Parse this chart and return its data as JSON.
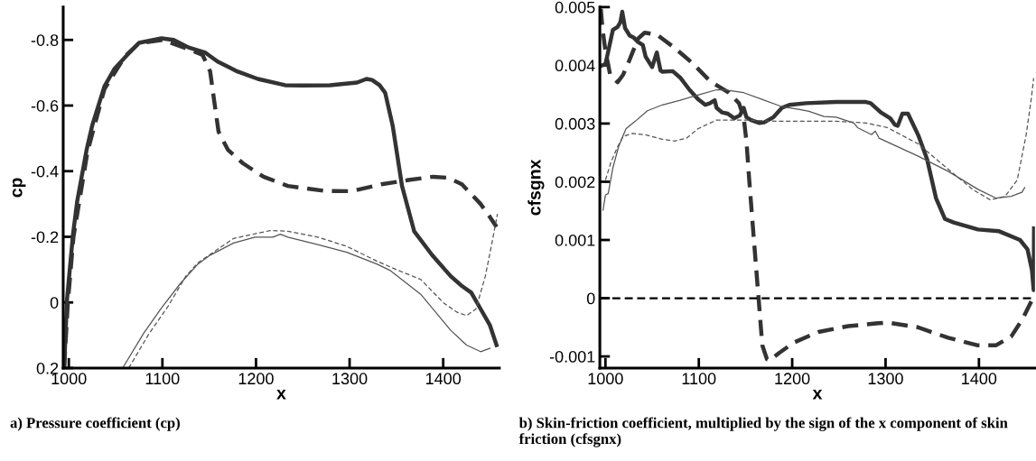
{
  "chart_data": [
    {
      "type": "line",
      "xlabel": "x",
      "ylabel": "cp",
      "xlim": [
        994,
        1460
      ],
      "ylim": [
        0.2,
        -0.9
      ],
      "xticks": [
        1000,
        1100,
        1200,
        1300,
        1400
      ],
      "yticks": [
        -0.8,
        -0.6,
        -0.4,
        -0.2,
        0,
        0.2
      ],
      "annotations": [
        "a) Pressure coefficient (cp)"
      ],
      "series": [
        {
          "color": "#333333",
          "line_style": "solid",
          "x": [
            995,
            998,
            1004.5,
            1009,
            1019,
            1025,
            1038,
            1049,
            1061,
            1075,
            1099,
            1112,
            1128,
            1146,
            1159,
            1180,
            1202,
            1231,
            1250,
            1279,
            1308,
            1318,
            1324,
            1332,
            1338,
            1346,
            1356,
            1369,
            1388,
            1408,
            1420,
            1430,
            1440,
            1450,
            1457
          ],
          "values": [
            0.2,
            -0.006,
            -0.208,
            -0.309,
            -0.465,
            -0.539,
            -0.658,
            -0.713,
            -0.75,
            -0.791,
            -0.805,
            -0.8,
            -0.777,
            -0.761,
            -0.734,
            -0.704,
            -0.681,
            -0.662,
            -0.661,
            -0.662,
            -0.67,
            -0.681,
            -0.678,
            -0.662,
            -0.639,
            -0.539,
            -0.355,
            -0.217,
            -0.145,
            -0.08,
            -0.05,
            -0.03,
            0.02,
            0.07,
            0.13
          ]
        },
        {
          "color": "#333333",
          "line_style": "dashed",
          "x": [
            995,
            999,
            1005,
            1020,
            1038,
            1060,
            1075,
            1100,
            1125,
            1143,
            1151,
            1155,
            1160,
            1170,
            1186,
            1208,
            1234,
            1273,
            1302,
            1334,
            1363,
            1389,
            1405,
            1420,
            1440,
            1450,
            1457
          ],
          "values": [
            0.2,
            0.0,
            -0.2,
            -0.46,
            -0.65,
            -0.75,
            -0.79,
            -0.8,
            -0.775,
            -0.754,
            -0.704,
            -0.621,
            -0.52,
            -0.465,
            -0.424,
            -0.383,
            -0.355,
            -0.34,
            -0.339,
            -0.36,
            -0.373,
            -0.383,
            -0.38,
            -0.36,
            -0.3,
            -0.26,
            -0.23
          ]
        },
        {
          "color": "#555555",
          "line_style": "solid",
          "x": [
            1057.5,
            1080,
            1099,
            1119,
            1138,
            1151,
            1176,
            1199,
            1218,
            1226,
            1234,
            1266,
            1297,
            1329,
            1343,
            1376,
            1408,
            1425,
            1440,
            1450
          ],
          "values": [
            0.2,
            0.094,
            0.017,
            -0.057,
            -0.117,
            -0.144,
            -0.181,
            -0.199,
            -0.199,
            -0.208,
            -0.199,
            -0.176,
            -0.153,
            -0.117,
            -0.098,
            -0.025,
            0.085,
            0.13,
            0.15,
            0.14
          ]
        },
        {
          "color": "#555555",
          "line_style": "dashed",
          "x": [
            1064,
            1086,
            1106,
            1125,
            1138,
            1176,
            1215,
            1234,
            1266,
            1297,
            1329,
            1350,
            1376,
            1401,
            1415,
            1425,
            1435,
            1445,
            1452,
            1458
          ],
          "values": [
            0.2,
            0.094,
            0.012,
            -0.08,
            -0.121,
            -0.195,
            -0.219,
            -0.217,
            -0.199,
            -0.171,
            -0.126,
            -0.1,
            -0.07,
            0.003,
            0.03,
            0.04,
            0.02,
            -0.08,
            -0.18,
            -0.27
          ]
        }
      ]
    },
    {
      "type": "line",
      "xlabel": "x",
      "ylabel": "cfsgnx",
      "xlim": [
        994,
        1460
      ],
      "ylim": [
        -0.0012,
        0.005
      ],
      "xticks": [
        1000,
        1100,
        1200,
        1300,
        1400
      ],
      "yticks": [
        -0.001,
        0,
        0.001,
        0.002,
        0.003,
        0.004,
        0.005
      ],
      "annotations": [
        "b) Skin-friction coefficient, multiplied by the sign of the x component of skin friction (cfsgnx)"
      ],
      "ref_lines": [
        {
          "axis": "y",
          "value": 0,
          "color": "#000000",
          "line_style": "dashed"
        }
      ],
      "series": [
        {
          "color": "#333333",
          "line_style": "solid",
          "x": [
            995,
            1000,
            1008,
            1013,
            1016,
            1018,
            1021,
            1026,
            1030,
            1035,
            1040,
            1043,
            1050,
            1055,
            1059,
            1061,
            1072,
            1080,
            1090,
            1099,
            1107,
            1112,
            1117,
            1119,
            1125,
            1131,
            1138,
            1144,
            1148,
            1151,
            1156,
            1165,
            1170,
            1180,
            1189,
            1197,
            1215,
            1247,
            1279,
            1284,
            1295,
            1305,
            1310,
            1313,
            1318,
            1324,
            1335,
            1344.4,
            1354,
            1363.7,
            1373,
            1399,
            1421.6,
            1444,
            1452,
            1456.8,
            1458.6,
            1459
          ],
          "values": [
            0.00399,
            0.00402,
            0.00461,
            0.00466,
            0.00474,
            0.00492,
            0.00464,
            0.00451,
            0.00448,
            0.0044,
            0.00435,
            0.00415,
            0.00397,
            0.00422,
            0.00391,
            0.00389,
            0.0039,
            0.00379,
            0.00358,
            0.00342,
            0.00332,
            0.00335,
            0.0034,
            0.00327,
            0.00319,
            0.00317,
            0.00309,
            0.00314,
            0.00327,
            0.00311,
            0.00306,
            0.00301,
            0.00302,
            0.00311,
            0.00327,
            0.00332,
            0.00335,
            0.00337,
            0.00337,
            0.00335,
            0.00319,
            0.00309,
            0.00298,
            0.00296,
            0.00317,
            0.00317,
            0.0028,
            0.00239,
            0.00172,
            0.00136,
            0.0013,
            0.00118,
            0.00115,
            0.001,
            0.00084,
            0.00048,
            0.00014,
            0.0012
          ]
        },
        {
          "color": "#333333",
          "line_style": "dashed",
          "x": [
            995,
            997,
            1000,
            1005,
            1013,
            1019,
            1026,
            1035,
            1042,
            1055,
            1074,
            1093,
            1112,
            1132,
            1143,
            1148,
            1151,
            1154,
            1159,
            1164,
            1168,
            1173,
            1176,
            1186,
            1202,
            1228,
            1260,
            1292,
            1302.5,
            1334.7,
            1367,
            1399,
            1418,
            1434.5,
            1447,
            1455,
            1458.6
          ],
          "values": [
            0.00497,
            0.00461,
            0.00425,
            0.00384,
            0.00371,
            0.00384,
            0.0041,
            0.00446,
            0.00456,
            0.00453,
            0.0043,
            0.00404,
            0.00373,
            0.00353,
            0.00335,
            0.00311,
            0.0027,
            0.00203,
            0.001,
            0.0,
            -0.00081,
            -0.00105,
            -0.00107,
            -0.00094,
            -0.00076,
            -0.00058,
            -0.00048,
            -0.00043,
            -0.00042,
            -0.0005,
            -0.00068,
            -0.00081,
            -0.00081,
            -0.00066,
            -0.00035,
            -9e-05,
            2e-05
          ]
        },
        {
          "color": "#555555",
          "line_style": "solid",
          "x": [
            997.4,
            1000,
            1003,
            1008,
            1014,
            1022,
            1032,
            1045,
            1061,
            1080,
            1099,
            1119,
            1128,
            1148,
            1167,
            1189,
            1208,
            1218,
            1234,
            1247,
            1266,
            1270,
            1285,
            1289,
            1293,
            1335,
            1367,
            1399,
            1418,
            1434.5,
            1446,
            1449
          ],
          "values": [
            0.00151,
            0.00177,
            0.0018,
            0.00224,
            0.0026,
            0.00291,
            0.00304,
            0.00322,
            0.00332,
            0.0034,
            0.00349,
            0.00358,
            0.00358,
            0.00353,
            0.00342,
            0.00329,
            0.00324,
            0.00321,
            0.00312,
            0.00311,
            0.00301,
            0.00293,
            0.00281,
            0.00287,
            0.00275,
            0.00244,
            0.00218,
            0.00187,
            0.00172,
            0.00175,
            0.00182,
            0.0019
          ]
        },
        {
          "color": "#555555",
          "line_style": "dashed",
          "x": [
            1000,
            1006,
            1013,
            1019,
            1029,
            1042,
            1061,
            1074,
            1087,
            1099,
            1119,
            1151,
            1183,
            1215,
            1247,
            1279,
            1302,
            1335,
            1354,
            1393,
            1412,
            1428,
            1441,
            1450.5,
            1456,
            1458.6
          ],
          "values": [
            0.00203,
            0.00234,
            0.0026,
            0.00278,
            0.00283,
            0.00281,
            0.00273,
            0.0027,
            0.00275,
            0.00291,
            0.00306,
            0.00306,
            0.00304,
            0.00304,
            0.00304,
            0.00301,
            0.00293,
            0.00265,
            0.00239,
            0.00187,
            0.00169,
            0.00175,
            0.00203,
            0.0028,
            0.00342,
            0.00378
          ]
        }
      ]
    }
  ]
}
